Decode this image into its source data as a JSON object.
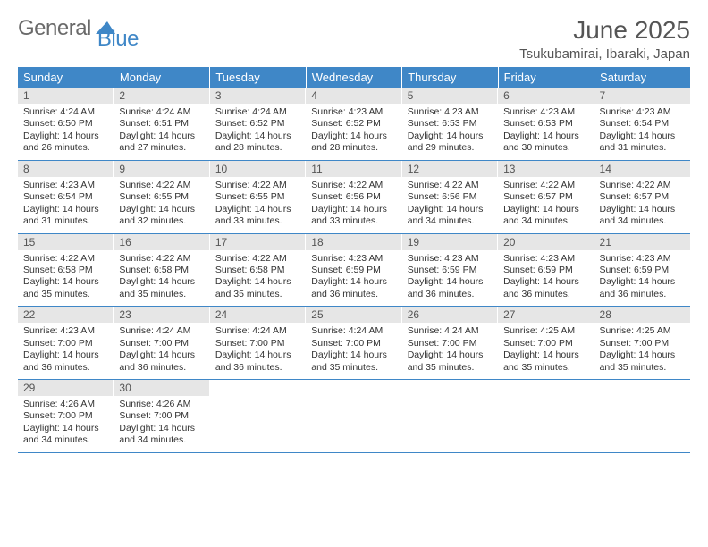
{
  "logo": {
    "part1": "General",
    "part2": "Blue"
  },
  "title": "June 2025",
  "location": "Tsukubamirai, Ibaraki, Japan",
  "colors": {
    "header_bg": "#3f87c7",
    "header_text": "#ffffff",
    "daynum_bg": "#e6e6e6",
    "border": "#3f87c7"
  },
  "dow": [
    "Sunday",
    "Monday",
    "Tuesday",
    "Wednesday",
    "Thursday",
    "Friday",
    "Saturday"
  ],
  "weeks": [
    [
      {
        "n": "1",
        "sr": "4:24 AM",
        "ss": "6:50 PM",
        "dl": "14 hours and 26 minutes."
      },
      {
        "n": "2",
        "sr": "4:24 AM",
        "ss": "6:51 PM",
        "dl": "14 hours and 27 minutes."
      },
      {
        "n": "3",
        "sr": "4:24 AM",
        "ss": "6:52 PM",
        "dl": "14 hours and 28 minutes."
      },
      {
        "n": "4",
        "sr": "4:23 AM",
        "ss": "6:52 PM",
        "dl": "14 hours and 28 minutes."
      },
      {
        "n": "5",
        "sr": "4:23 AM",
        "ss": "6:53 PM",
        "dl": "14 hours and 29 minutes."
      },
      {
        "n": "6",
        "sr": "4:23 AM",
        "ss": "6:53 PM",
        "dl": "14 hours and 30 minutes."
      },
      {
        "n": "7",
        "sr": "4:23 AM",
        "ss": "6:54 PM",
        "dl": "14 hours and 31 minutes."
      }
    ],
    [
      {
        "n": "8",
        "sr": "4:23 AM",
        "ss": "6:54 PM",
        "dl": "14 hours and 31 minutes."
      },
      {
        "n": "9",
        "sr": "4:22 AM",
        "ss": "6:55 PM",
        "dl": "14 hours and 32 minutes."
      },
      {
        "n": "10",
        "sr": "4:22 AM",
        "ss": "6:55 PM",
        "dl": "14 hours and 33 minutes."
      },
      {
        "n": "11",
        "sr": "4:22 AM",
        "ss": "6:56 PM",
        "dl": "14 hours and 33 minutes."
      },
      {
        "n": "12",
        "sr": "4:22 AM",
        "ss": "6:56 PM",
        "dl": "14 hours and 34 minutes."
      },
      {
        "n": "13",
        "sr": "4:22 AM",
        "ss": "6:57 PM",
        "dl": "14 hours and 34 minutes."
      },
      {
        "n": "14",
        "sr": "4:22 AM",
        "ss": "6:57 PM",
        "dl": "14 hours and 34 minutes."
      }
    ],
    [
      {
        "n": "15",
        "sr": "4:22 AM",
        "ss": "6:58 PM",
        "dl": "14 hours and 35 minutes."
      },
      {
        "n": "16",
        "sr": "4:22 AM",
        "ss": "6:58 PM",
        "dl": "14 hours and 35 minutes."
      },
      {
        "n": "17",
        "sr": "4:22 AM",
        "ss": "6:58 PM",
        "dl": "14 hours and 35 minutes."
      },
      {
        "n": "18",
        "sr": "4:23 AM",
        "ss": "6:59 PM",
        "dl": "14 hours and 36 minutes."
      },
      {
        "n": "19",
        "sr": "4:23 AM",
        "ss": "6:59 PM",
        "dl": "14 hours and 36 minutes."
      },
      {
        "n": "20",
        "sr": "4:23 AM",
        "ss": "6:59 PM",
        "dl": "14 hours and 36 minutes."
      },
      {
        "n": "21",
        "sr": "4:23 AM",
        "ss": "6:59 PM",
        "dl": "14 hours and 36 minutes."
      }
    ],
    [
      {
        "n": "22",
        "sr": "4:23 AM",
        "ss": "7:00 PM",
        "dl": "14 hours and 36 minutes."
      },
      {
        "n": "23",
        "sr": "4:24 AM",
        "ss": "7:00 PM",
        "dl": "14 hours and 36 minutes."
      },
      {
        "n": "24",
        "sr": "4:24 AM",
        "ss": "7:00 PM",
        "dl": "14 hours and 36 minutes."
      },
      {
        "n": "25",
        "sr": "4:24 AM",
        "ss": "7:00 PM",
        "dl": "14 hours and 35 minutes."
      },
      {
        "n": "26",
        "sr": "4:24 AM",
        "ss": "7:00 PM",
        "dl": "14 hours and 35 minutes."
      },
      {
        "n": "27",
        "sr": "4:25 AM",
        "ss": "7:00 PM",
        "dl": "14 hours and 35 minutes."
      },
      {
        "n": "28",
        "sr": "4:25 AM",
        "ss": "7:00 PM",
        "dl": "14 hours and 35 minutes."
      }
    ],
    [
      {
        "n": "29",
        "sr": "4:26 AM",
        "ss": "7:00 PM",
        "dl": "14 hours and 34 minutes."
      },
      {
        "n": "30",
        "sr": "4:26 AM",
        "ss": "7:00 PM",
        "dl": "14 hours and 34 minutes."
      },
      null,
      null,
      null,
      null,
      null
    ]
  ],
  "labels": {
    "sunrise": "Sunrise:",
    "sunset": "Sunset:",
    "daylight": "Daylight:"
  }
}
